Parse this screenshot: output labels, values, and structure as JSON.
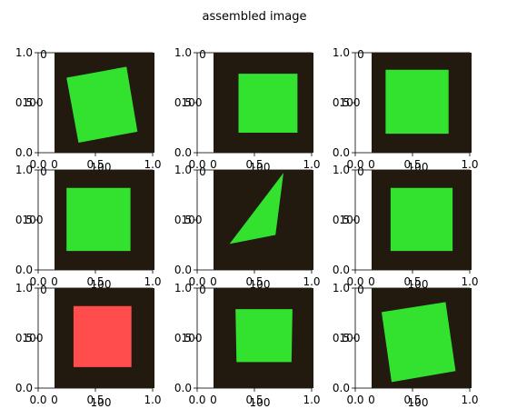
{
  "title": "assembled image",
  "colors": {
    "background": "#221a0f",
    "green": "#33e22e",
    "red": "#ff4c4c",
    "axis": "#000000"
  },
  "chart_data": {
    "type": "image_grid",
    "title": "assembled image",
    "rows": 3,
    "cols": 3,
    "outer_axis": {
      "xlim": [
        0,
        1
      ],
      "ylim": [
        0,
        1
      ],
      "xticks": [
        "0.0",
        "0.5",
        "1.0"
      ],
      "yticks": [
        "0.0",
        "0.5",
        "1.0"
      ]
    },
    "inner_ticks": {
      "x": [
        "0",
        "100"
      ],
      "y": [
        "0",
        "100"
      ]
    },
    "panels": [
      {
        "row": 0,
        "col": 0,
        "shape": "quad",
        "color": "green",
        "points": [
          [
            0.12,
            0.25
          ],
          [
            0.72,
            0.14
          ],
          [
            0.83,
            0.79
          ],
          [
            0.24,
            0.9
          ]
        ]
      },
      {
        "row": 0,
        "col": 1,
        "shape": "quad",
        "color": "green",
        "points": [
          [
            0.25,
            0.21
          ],
          [
            0.84,
            0.21
          ],
          [
            0.84,
            0.8
          ],
          [
            0.25,
            0.8
          ]
        ]
      },
      {
        "row": 0,
        "col": 2,
        "shape": "quad",
        "color": "green",
        "points": [
          [
            0.14,
            0.17
          ],
          [
            0.77,
            0.17
          ],
          [
            0.77,
            0.81
          ],
          [
            0.14,
            0.81
          ]
        ]
      },
      {
        "row": 1,
        "col": 0,
        "shape": "quad",
        "color": "green",
        "points": [
          [
            0.12,
            0.18
          ],
          [
            0.76,
            0.18
          ],
          [
            0.76,
            0.81
          ],
          [
            0.12,
            0.81
          ]
        ]
      },
      {
        "row": 1,
        "col": 1,
        "shape": "triangle",
        "color": "green",
        "points": [
          [
            0.16,
            0.74
          ],
          [
            0.62,
            0.65
          ],
          [
            0.7,
            0.03
          ]
        ]
      },
      {
        "row": 1,
        "col": 2,
        "shape": "quad",
        "color": "green",
        "points": [
          [
            0.19,
            0.18
          ],
          [
            0.81,
            0.18
          ],
          [
            0.81,
            0.81
          ],
          [
            0.19,
            0.81
          ]
        ]
      },
      {
        "row": 2,
        "col": 0,
        "shape": "quad",
        "color": "red",
        "points": [
          [
            0.19,
            0.18
          ],
          [
            0.77,
            0.18
          ],
          [
            0.77,
            0.79
          ],
          [
            0.19,
            0.79
          ]
        ]
      },
      {
        "row": 2,
        "col": 1,
        "shape": "quad",
        "color": "green",
        "points": [
          [
            0.22,
            0.21
          ],
          [
            0.79,
            0.21
          ],
          [
            0.78,
            0.74
          ],
          [
            0.23,
            0.74
          ]
        ]
      },
      {
        "row": 2,
        "col": 2,
        "shape": "quad",
        "color": "green",
        "points": [
          [
            0.1,
            0.24
          ],
          [
            0.74,
            0.14
          ],
          [
            0.84,
            0.83
          ],
          [
            0.2,
            0.94
          ]
        ]
      }
    ]
  }
}
